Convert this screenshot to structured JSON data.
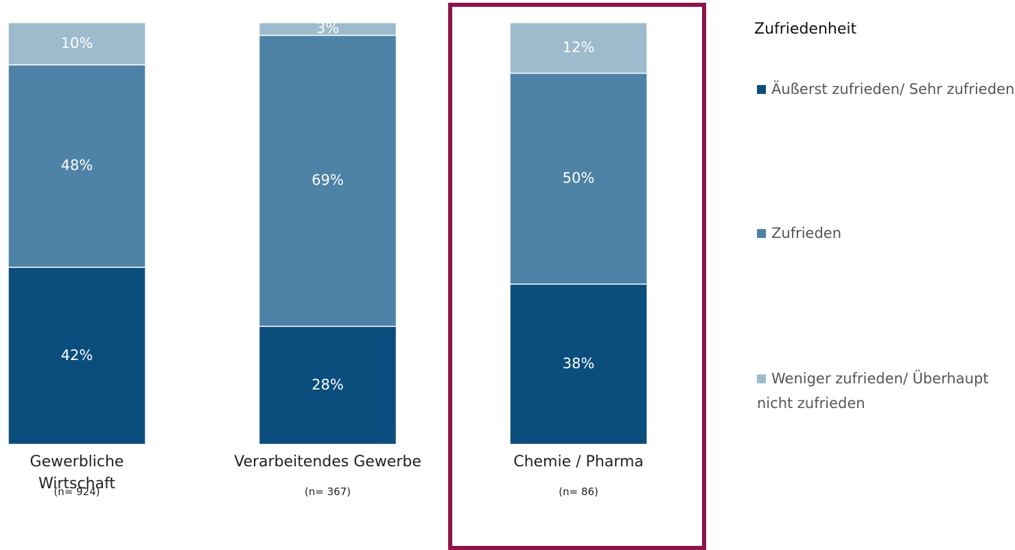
{
  "chart_data": {
    "type": "stacked_bar",
    "categories": [
      "Gewerbliche Wirtschaft",
      "Verarbeitendes Gewerbe",
      "Chemie / Pharma"
    ],
    "annotations": [
      "(n= 924)",
      "(n= 367)",
      "(n= 86)"
    ],
    "legend_title": "Zufriedenheit",
    "ylim": [
      0,
      100
    ],
    "series": [
      {
        "name": "Äußerst zufrieden/ Sehr zufrieden",
        "color": "#0b4d7d",
        "values": [
          42,
          28,
          38
        ],
        "value_labels": [
          "42%",
          "28%",
          "38%"
        ]
      },
      {
        "name": "Zufrieden",
        "color": "#4e82a7",
        "values": [
          48,
          69,
          50
        ],
        "value_labels": [
          "48%",
          "69%",
          "50%"
        ]
      },
      {
        "name": "Weniger zufrieden/ Überhaupt nicht zufrieden",
        "color": "#9dbbcd",
        "values": [
          10,
          3,
          12
        ],
        "value_labels": [
          "10%",
          "3%",
          "12%"
        ]
      }
    ]
  }
}
